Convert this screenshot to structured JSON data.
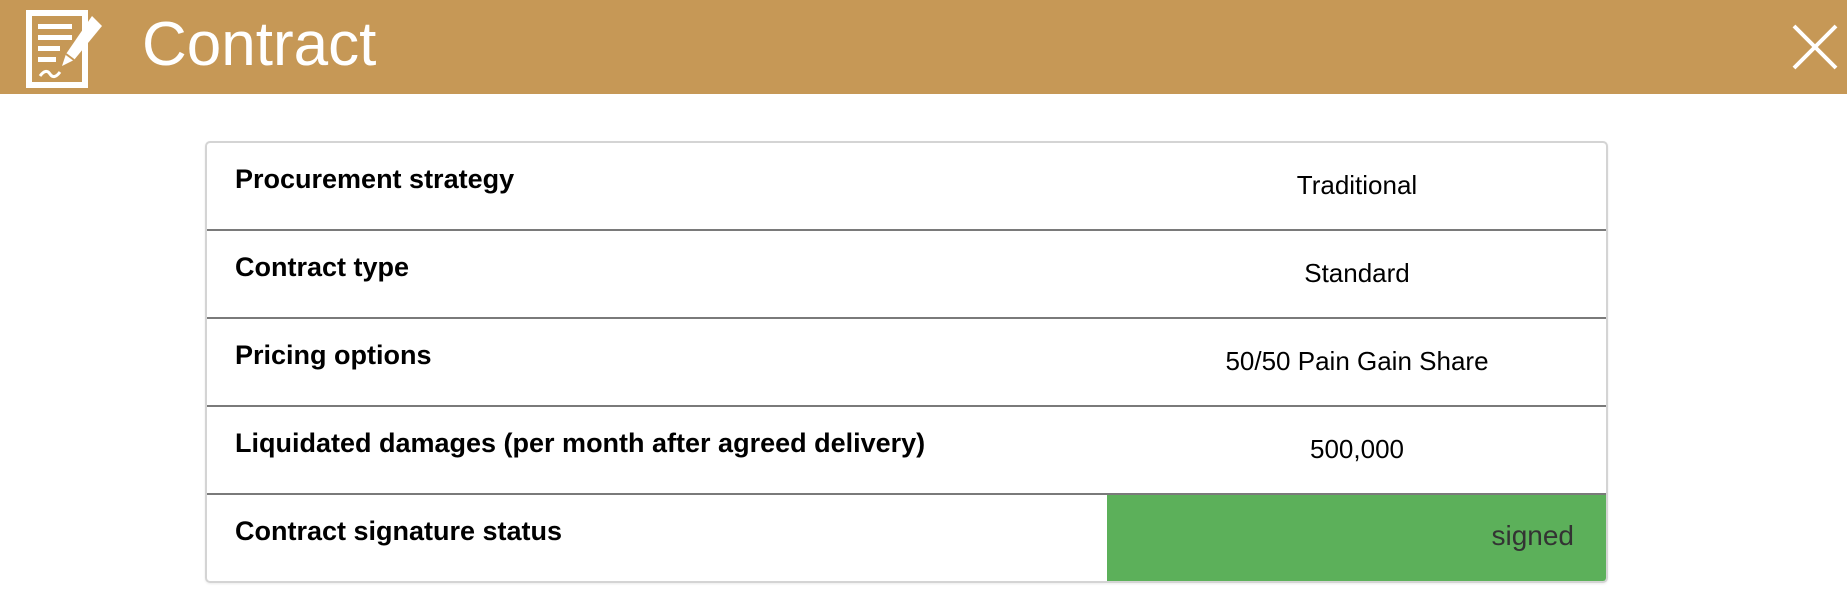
{
  "header": {
    "title": "Contract",
    "icon": "contract-sign-icon",
    "close_icon": "close-icon",
    "color": "#c69856"
  },
  "rows": [
    {
      "label": "Procurement strategy",
      "value": "Traditional"
    },
    {
      "label": "Contract type",
      "value": "Standard"
    },
    {
      "label": "Pricing options",
      "value": "50/50 Pain Gain Share"
    },
    {
      "label": "Liquidated damages (per month after agreed delivery)",
      "value": "500,000"
    },
    {
      "label": "Contract signature status",
      "value": "signed",
      "status_color": "#5cb05a"
    }
  ]
}
